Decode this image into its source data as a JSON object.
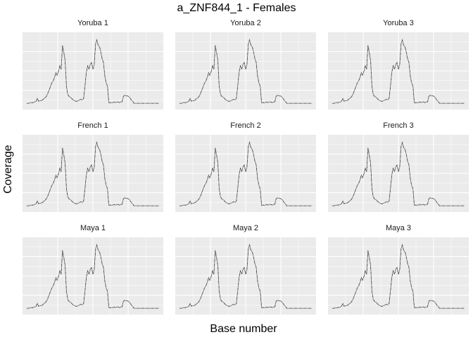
{
  "chart_data": {
    "type": "line",
    "title": "a_ZNF844_1 - Females",
    "xlabel": "Base number",
    "ylabel": "Coverage",
    "axis_ticks_shown": false,
    "grid": true,
    "colors": {
      "panel": "#ebebeb",
      "grid": "#ffffff",
      "line": "#333333"
    },
    "facets": [
      {
        "label": "Yoruba 1"
      },
      {
        "label": "Yoruba 2"
      },
      {
        "label": "Yoruba 3"
      },
      {
        "label": "French 1"
      },
      {
        "label": "French 2"
      },
      {
        "label": "French 3"
      },
      {
        "label": "Maya 1"
      },
      {
        "label": "Maya 2"
      },
      {
        "label": "Maya 3"
      }
    ],
    "x": [
      0,
      0.015,
      0.03,
      0.045,
      0.06,
      0.07,
      0.08,
      0.09,
      0.1,
      0.11,
      0.12,
      0.13,
      0.14,
      0.15,
      0.16,
      0.17,
      0.18,
      0.19,
      0.2,
      0.21,
      0.22,
      0.23,
      0.24,
      0.25,
      0.26,
      0.27,
      0.28,
      0.29,
      0.3,
      0.31,
      0.32,
      0.33,
      0.34,
      0.35,
      0.36,
      0.37,
      0.38,
      0.39,
      0.4,
      0.41,
      0.42,
      0.43,
      0.44,
      0.45,
      0.46,
      0.47,
      0.48,
      0.49,
      0.5,
      0.51,
      0.52,
      0.53,
      0.54,
      0.55,
      0.56,
      0.57,
      0.58,
      0.59,
      0.6,
      0.61,
      0.62,
      0.63,
      0.64,
      0.65,
      0.66,
      0.67,
      0.68,
      0.69,
      0.7,
      0.71,
      0.72,
      0.73,
      0.74,
      0.75,
      0.76,
      0.77,
      0.78,
      0.79,
      0.8,
      0.81,
      0.82,
      0.83,
      0.84,
      0.85,
      0.86,
      0.87,
      0.88,
      0.89,
      0.9,
      0.91,
      0.92,
      0.93,
      0.94,
      0.95,
      0.96,
      0.97,
      0.98,
      0.99,
      1.0
    ],
    "y": [
      0.05,
      0.05,
      0.06,
      0.06,
      0.07,
      0.08,
      0.12,
      0.08,
      0.09,
      0.09,
      0.1,
      0.12,
      0.13,
      0.16,
      0.2,
      0.25,
      0.3,
      0.35,
      0.38,
      0.43,
      0.5,
      0.46,
      0.52,
      0.6,
      0.55,
      0.9,
      0.8,
      0.68,
      0.3,
      0.18,
      0.15,
      0.14,
      0.12,
      0.1,
      0.09,
      0.08,
      0.08,
      0.09,
      0.1,
      0.11,
      0.1,
      0.12,
      0.3,
      0.5,
      0.6,
      0.55,
      0.62,
      0.65,
      0.55,
      0.62,
      0.92,
      0.98,
      0.9,
      0.88,
      0.8,
      0.7,
      0.65,
      0.45,
      0.35,
      0.3,
      0.06,
      0.06,
      0.06,
      0.06,
      0.07,
      0.06,
      0.07,
      0.07,
      0.06,
      0.07,
      0.07,
      0.15,
      0.17,
      0.16,
      0.16,
      0.15,
      0.13,
      0.1,
      0.08,
      0.05,
      0.05,
      0.05,
      0.05,
      0.05,
      0.05,
      0.05,
      0.05,
      0.05,
      0.05,
      0.05,
      0.05,
      0.05,
      0.05,
      0.05,
      0.05,
      0.05,
      0.05,
      0.05,
      0.05
    ],
    "ylim": [
      0,
      1.05
    ]
  }
}
